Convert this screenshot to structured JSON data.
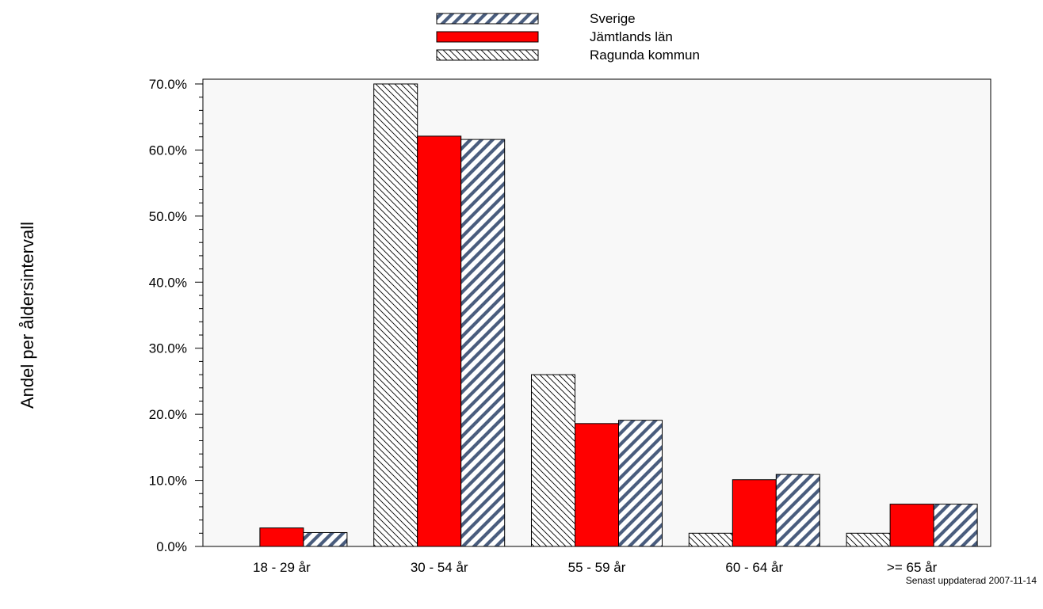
{
  "chart_data": {
    "type": "bar",
    "categories": [
      "18 - 29 år",
      "30 - 54 år",
      "55 - 59 år",
      "60 - 64 år",
      ">= 65 år"
    ],
    "series": [
      {
        "name": "Ragunda kommun",
        "values": [
          0.0,
          70.0,
          26.0,
          2.0,
          2.0
        ],
        "fill": "back-hatch",
        "color": "#000000"
      },
      {
        "name": "Jämtlands län",
        "values": [
          2.8,
          62.1,
          18.6,
          10.1,
          6.4
        ],
        "fill": "solid",
        "color": "#ff0000"
      },
      {
        "name": "Sverige",
        "values": [
          2.1,
          61.6,
          19.1,
          10.9,
          6.4
        ],
        "fill": "forward-hatch",
        "color": "#4a5d7e"
      }
    ],
    "legend_order": [
      "Sverige",
      "Jämtlands län",
      "Ragunda kommun"
    ],
    "ylabel": "Andel per åldersintervall",
    "xlabel": "",
    "ylim": [
      0,
      70
    ],
    "yticks": [
      "0.0%",
      "10.0%",
      "20.0%",
      "30.0%",
      "40.0%",
      "50.0%",
      "60.0%",
      "70.0%"
    ],
    "legend_position": "top-center",
    "plot_background": "#f8f8f8",
    "grid": false,
    "footnote": "Senast uppdaterad 2007-11-14"
  }
}
